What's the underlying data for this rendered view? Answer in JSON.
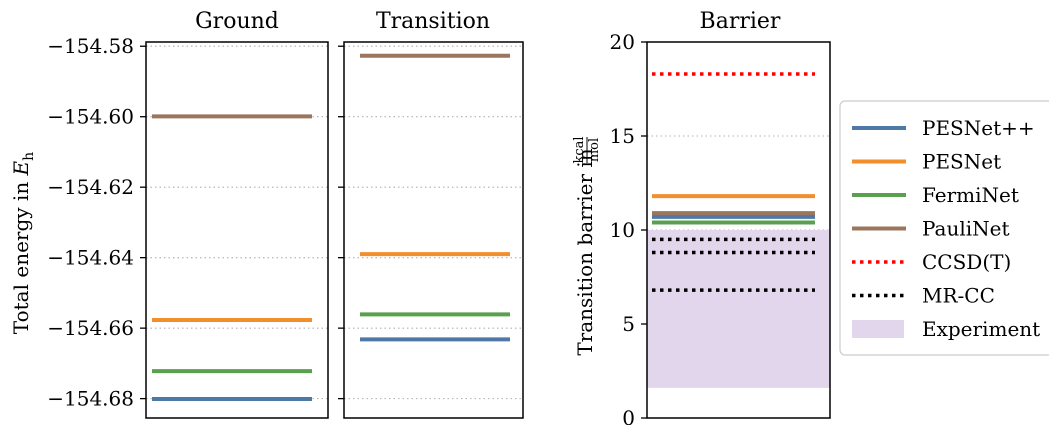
{
  "colors": {
    "PESNet++": "#4e79a7",
    "PESNet": "#f28e2b",
    "FermiNet": "#59a14f",
    "PauliNet": "#9c755f",
    "CCSD(T)": "#ff0000",
    "MR-CC": "#000000",
    "Experiment": "#e2d6ec"
  },
  "chart_data": [
    {
      "type": "line",
      "title": "Ground",
      "ylabel": "Total energy in E_h",
      "ylabel_main": "Total energy in ",
      "ylabel_sym": "E",
      "ylabel_sub": "h",
      "ylim": [
        -154.6855,
        -154.5788
      ],
      "yticks": [
        -154.58,
        -154.6,
        -154.62,
        -154.64,
        -154.66,
        -154.68
      ],
      "ytick_labels": [
        "−154.58",
        "−154.60",
        "−154.62",
        "−154.64",
        "−154.66",
        "−154.68"
      ],
      "grid": true,
      "series": [
        {
          "name": "PESNet++",
          "value": -154.6801
        },
        {
          "name": "PESNet",
          "value": -154.6577
        },
        {
          "name": "FermiNet",
          "value": -154.6722
        },
        {
          "name": "PauliNet",
          "value": -154.5999
        }
      ]
    },
    {
      "type": "line",
      "title": "Transition",
      "ylim": [
        -154.6855,
        -154.5788
      ],
      "yticks": [
        -154.58,
        -154.6,
        -154.62,
        -154.64,
        -154.66,
        -154.68
      ],
      "grid": true,
      "series": [
        {
          "name": "PESNet++",
          "value": -154.6632
        },
        {
          "name": "PESNet",
          "value": -154.639
        },
        {
          "name": "FermiNet",
          "value": -154.6561
        },
        {
          "name": "PauliNet",
          "value": -154.5827
        }
      ]
    },
    {
      "type": "line",
      "title": "Barrier",
      "ylabel": "Transition barrier in kcal/mol",
      "ylabel_main": "Transition barrier in ",
      "ylabel_num": "kcal",
      "ylabel_den": "mol",
      "ylim": [
        0,
        20
      ],
      "yticks": [
        0,
        5,
        10,
        15,
        20
      ],
      "ytick_labels": [
        "0",
        "5",
        "10",
        "15",
        "20"
      ],
      "grid": true,
      "series": [
        {
          "name": "PESNet++",
          "values": [
            10.8,
            10.7
          ]
        },
        {
          "name": "PESNet",
          "values": [
            11.8
          ]
        },
        {
          "name": "FermiNet",
          "values": [
            10.4
          ]
        },
        {
          "name": "PauliNet",
          "values": [
            10.9
          ]
        },
        {
          "name": "CCSD(T)",
          "values": [
            18.3
          ]
        },
        {
          "name": "MR-CC",
          "values": [
            9.5,
            8.8,
            6.8
          ]
        }
      ],
      "band": {
        "name": "Experiment",
        "range": [
          1.6,
          10.0
        ]
      }
    }
  ],
  "legend": {
    "position": "right",
    "entries": [
      {
        "label": "PESNet++",
        "style": "line",
        "color": "#4e79a7"
      },
      {
        "label": "PESNet",
        "style": "line",
        "color": "#f28e2b"
      },
      {
        "label": "FermiNet",
        "style": "line",
        "color": "#59a14f"
      },
      {
        "label": "PauliNet",
        "style": "line",
        "color": "#9c755f"
      },
      {
        "label": "CCSD(T)",
        "style": "dotted",
        "color": "#ff0000"
      },
      {
        "label": "MR-CC",
        "style": "dotted",
        "color": "#000000"
      },
      {
        "label": "Experiment",
        "style": "patch",
        "color": "#e2d6ec"
      }
    ]
  }
}
